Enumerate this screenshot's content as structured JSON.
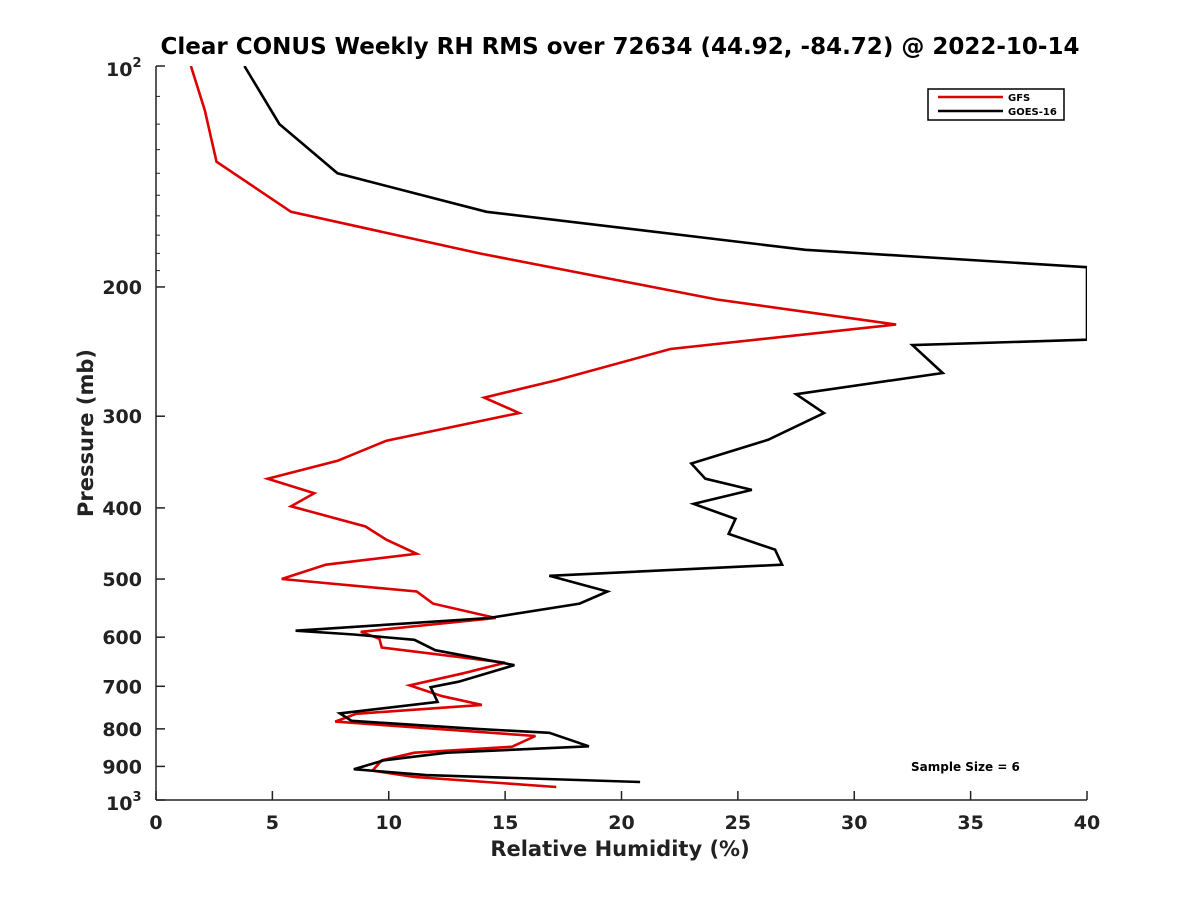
{
  "chart_data": {
    "type": "line",
    "title": "Clear CONUS Weekly RH RMS over 72634 (44.92, -84.72) @ 2022-10-14",
    "xlabel": "Relative Humidity (%)",
    "ylabel": "Pressure (mb)",
    "xlim": [
      0,
      40
    ],
    "ylim": [
      100,
      1000
    ],
    "yscale": "log",
    "yreversed": true,
    "x_ticks": [
      0,
      5,
      10,
      15,
      20,
      25,
      30,
      35,
      40
    ],
    "x_tick_labels": [
      "0",
      "5",
      "10",
      "15",
      "20",
      "25",
      "30",
      "35",
      "40"
    ],
    "y_ticks": [
      200,
      300,
      400,
      500,
      600,
      700,
      800,
      900
    ],
    "y_tick_labels": [
      "200",
      "300",
      "400",
      "500",
      "600",
      "700",
      "800",
      "900"
    ],
    "y_top_label": {
      "base": "10",
      "exp": "2"
    },
    "y_bottom_label": {
      "base": "10",
      "exp": "3"
    },
    "legend_location": "top-right",
    "annotation": "Sample Size = 6",
    "series": [
      {
        "name": "GFS",
        "color": "#dd0000",
        "points": [
          [
            1.5,
            100
          ],
          [
            2.1,
            115
          ],
          [
            2.6,
            135
          ],
          [
            5.8,
            158
          ],
          [
            13.9,
            180
          ],
          [
            24.1,
            208
          ],
          [
            31.8,
            225
          ],
          [
            22.1,
            243
          ],
          [
            17.2,
            268
          ],
          [
            14.1,
            283
          ],
          [
            15.6,
            297
          ],
          [
            9.9,
            324
          ],
          [
            7.8,
            345
          ],
          [
            4.8,
            365
          ],
          [
            6.8,
            382
          ],
          [
            5.8,
            398
          ],
          [
            9.0,
            424
          ],
          [
            9.9,
            442
          ],
          [
            11.2,
            462
          ],
          [
            7.3,
            478
          ],
          [
            5.4,
            500
          ],
          [
            11.2,
            520
          ],
          [
            11.9,
            540
          ],
          [
            14.6,
            565
          ],
          [
            8.8,
            590
          ],
          [
            9.6,
            603
          ],
          [
            9.7,
            620
          ],
          [
            15.0,
            650
          ],
          [
            13.2,
            672
          ],
          [
            10.9,
            698
          ],
          [
            12.3,
            722
          ],
          [
            14.0,
            742
          ],
          [
            8.6,
            763
          ],
          [
            7.7,
            782
          ],
          [
            16.3,
            818
          ],
          [
            15.3,
            846
          ],
          [
            11.1,
            862
          ],
          [
            9.7,
            883
          ],
          [
            9.3,
            912
          ],
          [
            11.1,
            930
          ],
          [
            17.2,
            960
          ]
        ]
      },
      {
        "name": "GOES-16",
        "color": "#000000",
        "points": [
          [
            3.8,
            100
          ],
          [
            5.3,
            120
          ],
          [
            7.8,
            140
          ],
          [
            14.2,
            158
          ],
          [
            27.9,
            178
          ],
          [
            40.0,
            188
          ],
          [
            40.0,
            236
          ],
          [
            32.5,
            240
          ],
          [
            33.8,
            262
          ],
          [
            27.5,
            280
          ],
          [
            28.7,
            297
          ],
          [
            26.3,
            323
          ],
          [
            23.0,
            348
          ],
          [
            23.6,
            365
          ],
          [
            25.6,
            378
          ],
          [
            23.1,
            395
          ],
          [
            24.9,
            414
          ],
          [
            24.6,
            434
          ],
          [
            26.6,
            456
          ],
          [
            26.9,
            478
          ],
          [
            16.9,
            495
          ],
          [
            19.4,
            520
          ],
          [
            18.2,
            540
          ],
          [
            14.3,
            565
          ],
          [
            6.0,
            588
          ],
          [
            8.5,
            595
          ],
          [
            11.1,
            605
          ],
          [
            12.0,
            625
          ],
          [
            15.4,
            655
          ],
          [
            13.0,
            690
          ],
          [
            11.8,
            702
          ],
          [
            12.1,
            735
          ],
          [
            7.9,
            762
          ],
          [
            8.4,
            780
          ],
          [
            13.8,
            800
          ],
          [
            16.9,
            810
          ],
          [
            18.6,
            845
          ],
          [
            12.5,
            862
          ],
          [
            9.8,
            883
          ],
          [
            8.5,
            908
          ],
          [
            11.6,
            925
          ],
          [
            20.8,
            945
          ]
        ]
      }
    ]
  }
}
